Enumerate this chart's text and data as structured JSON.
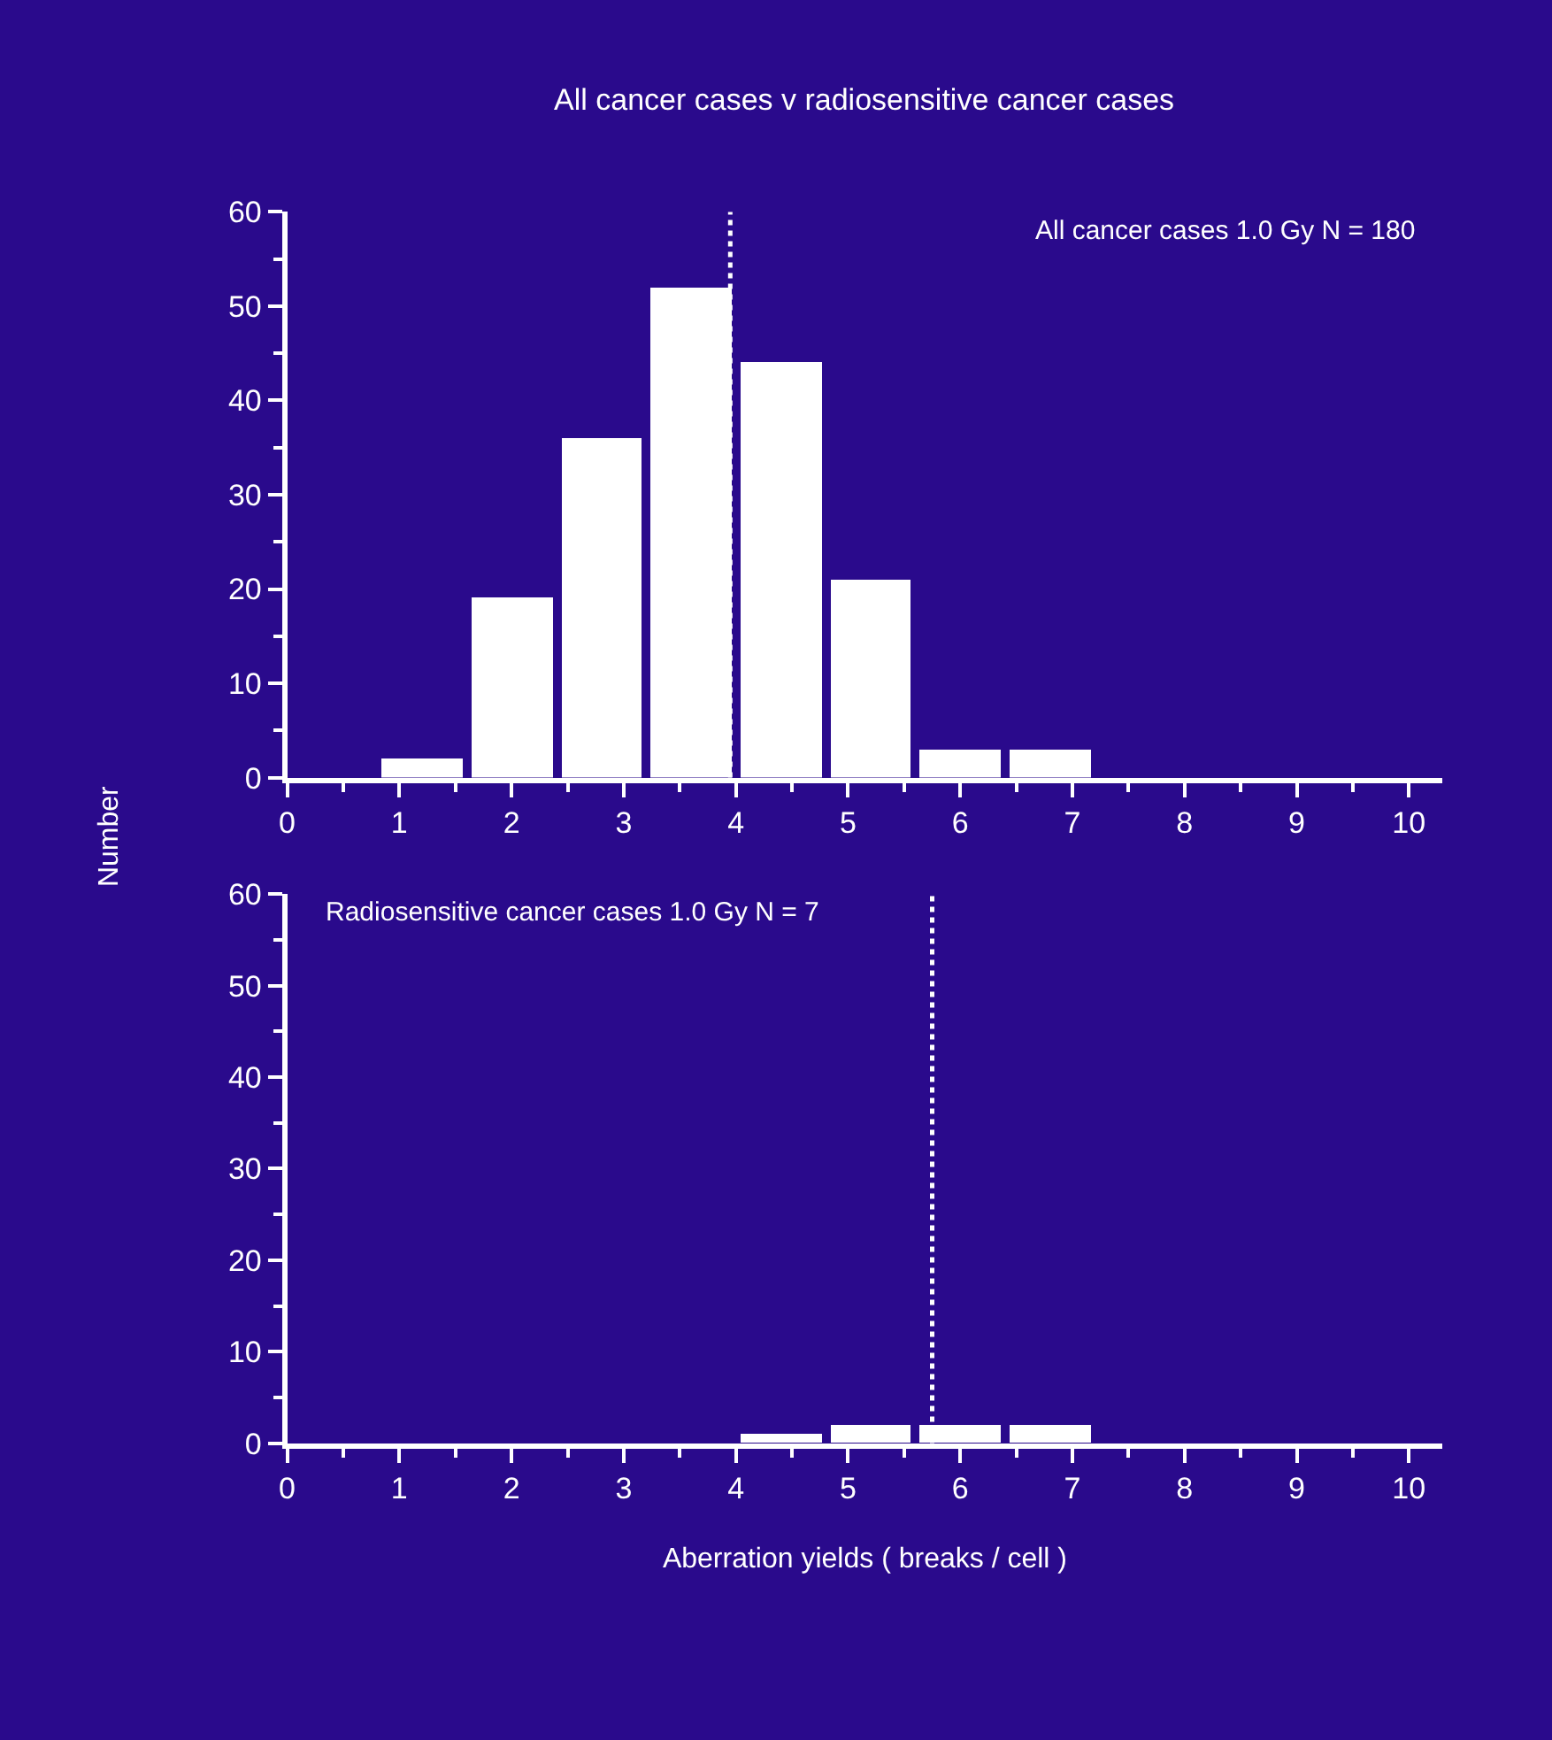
{
  "chart_data": [
    {
      "type": "histogram",
      "title": "All cancer cases v radiosensitive cancer cases",
      "ylabel": "Number",
      "annotations": [
        "All cancer cases 1.0 Gy N = 180"
      ],
      "bins": [
        0.8,
        1.6,
        2.4,
        3.2,
        4.0,
        4.8,
        5.6,
        6.4,
        7.2
      ],
      "values": [
        2,
        19,
        36,
        52,
        44,
        21,
        3,
        3
      ],
      "color": "#ffffff",
      "xlim": [
        0,
        10.3
      ],
      "xticks": [
        0,
        1,
        2,
        3,
        4,
        5,
        6,
        7,
        8,
        9,
        10
      ],
      "ylim": [
        0,
        60
      ],
      "yticks": [
        0,
        10,
        20,
        30,
        40,
        50,
        60
      ],
      "ref_lines": [
        {
          "axis": "x",
          "value": 3.95,
          "label": null,
          "color": "#ffffff",
          "line_style": "dotted"
        }
      ],
      "grid": false
    },
    {
      "type": "histogram",
      "xlabel": "Aberration yields ( breaks / cell )",
      "annotations": [
        "Radiosensitive cancer cases 1.0 Gy N = 7"
      ],
      "bins": [
        4.0,
        4.8,
        5.6,
        6.4,
        7.2
      ],
      "values": [
        1,
        2,
        2,
        2
      ],
      "color": "#ffffff",
      "xlim": [
        0,
        10.3
      ],
      "xticks": [
        0,
        1,
        2,
        3,
        4,
        5,
        6,
        7,
        8,
        9,
        10
      ],
      "ylim": [
        0,
        60
      ],
      "yticks": [
        0,
        10,
        20,
        30,
        40,
        50,
        60
      ],
      "ref_lines": [
        {
          "axis": "x",
          "value": 5.75,
          "label": null,
          "color": "#ffffff",
          "line_style": "dotted"
        }
      ],
      "grid": false
    }
  ]
}
